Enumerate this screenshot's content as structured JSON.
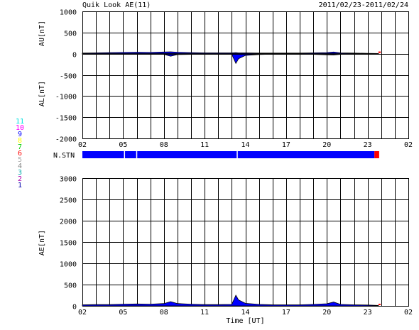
{
  "header": {
    "title": "Quik Look AE(11)",
    "date_range": "2011/02/23-2011/02/24"
  },
  "station_legend": {
    "items": [
      {
        "label": "11",
        "color": "#00e0e0"
      },
      {
        "label": "10",
        "color": "#ff00ff"
      },
      {
        "label": "9",
        "color": "#0000ff"
      },
      {
        "label": "8",
        "color": "#ffff00"
      },
      {
        "label": "7",
        "color": "#00cc00"
      },
      {
        "label": "6",
        "color": "#ff0000"
      },
      {
        "label": "5",
        "color": "#aaaaaa"
      },
      {
        "label": "4",
        "color": "#888888"
      },
      {
        "label": "3",
        "color": "#00aaaa"
      },
      {
        "label": "2",
        "color": "#aa00aa"
      },
      {
        "label": "1",
        "color": "#0000aa"
      }
    ]
  },
  "nstn": {
    "label": "N.STN",
    "segments": [
      {
        "start": 2.0,
        "end": 23.5,
        "color": "#0000ff"
      },
      {
        "start": 23.5,
        "end": 23.85,
        "color": "#ff0000"
      }
    ],
    "breaks": [
      5.1,
      6.0,
      13.4
    ]
  },
  "chart_data": [
    {
      "type": "area",
      "name": "AU/AL panel",
      "ylabel_upper": "AU[nT]",
      "ylabel_lower": "AL[nT]",
      "ylim": [
        -2000,
        1000
      ],
      "yticks": [
        1000,
        500,
        0,
        -500,
        -1000,
        -1500,
        -2000
      ],
      "xlim": [
        2,
        26
      ],
      "xtick_labels": [
        "02",
        "05",
        "08",
        "11",
        "14",
        "17",
        "20",
        "23",
        "02"
      ],
      "grid": true,
      "series": [
        {
          "key": "AU",
          "color": "#0000ff",
          "x": [
            2.0,
            3.0,
            4.0,
            5.0,
            6.0,
            7.0,
            8.0,
            8.5,
            9.0,
            10.0,
            11.0,
            12.0,
            13.0,
            13.3,
            13.5,
            14.0,
            15.0,
            16.0,
            17.0,
            18.0,
            19.0,
            20.0,
            20.5,
            21.0,
            22.0,
            23.0,
            23.8
          ],
          "values": [
            15,
            20,
            25,
            30,
            35,
            30,
            40,
            45,
            35,
            25,
            20,
            20,
            20,
            25,
            20,
            20,
            15,
            15,
            15,
            15,
            20,
            25,
            40,
            20,
            15,
            10,
            5
          ]
        },
        {
          "key": "AL",
          "color": "#0000ff",
          "x": [
            2.0,
            3.0,
            4.0,
            5.0,
            6.0,
            7.0,
            8.0,
            8.5,
            9.0,
            10.0,
            11.0,
            12.0,
            13.0,
            13.3,
            13.5,
            14.0,
            15.0,
            16.0,
            17.0,
            18.0,
            19.0,
            20.0,
            20.5,
            21.0,
            22.0,
            23.0,
            23.8
          ],
          "values": [
            -10,
            -10,
            -5,
            -10,
            -10,
            -10,
            -15,
            -60,
            -20,
            -15,
            -10,
            -10,
            -15,
            -230,
            -120,
            -40,
            -20,
            -10,
            -10,
            -10,
            -15,
            -25,
            -30,
            -15,
            -10,
            -10,
            -5
          ]
        }
      ]
    },
    {
      "type": "area",
      "name": "AE panel",
      "ylabel": "AE[nT]",
      "ylim": [
        0,
        3000
      ],
      "yticks": [
        3000,
        2500,
        2000,
        1500,
        1000,
        500,
        0
      ],
      "xlim": [
        2,
        26
      ],
      "xtick_labels": [
        "02",
        "05",
        "08",
        "11",
        "14",
        "17",
        "20",
        "23",
        "02"
      ],
      "xlabel": "Time [UT]",
      "grid": true,
      "series": [
        {
          "key": "AE",
          "color": "#0000ff",
          "x": [
            2.0,
            3.0,
            4.0,
            5.0,
            6.0,
            7.0,
            8.0,
            8.5,
            9.0,
            10.0,
            11.0,
            12.0,
            13.0,
            13.3,
            13.5,
            14.0,
            15.0,
            16.0,
            17.0,
            18.0,
            19.0,
            20.0,
            20.5,
            21.0,
            22.0,
            23.0,
            23.8
          ],
          "values": [
            25,
            30,
            30,
            40,
            45,
            40,
            55,
            100,
            55,
            40,
            30,
            30,
            35,
            250,
            140,
            60,
            35,
            25,
            25,
            25,
            35,
            50,
            90,
            35,
            25,
            20,
            10
          ]
        }
      ]
    }
  ]
}
